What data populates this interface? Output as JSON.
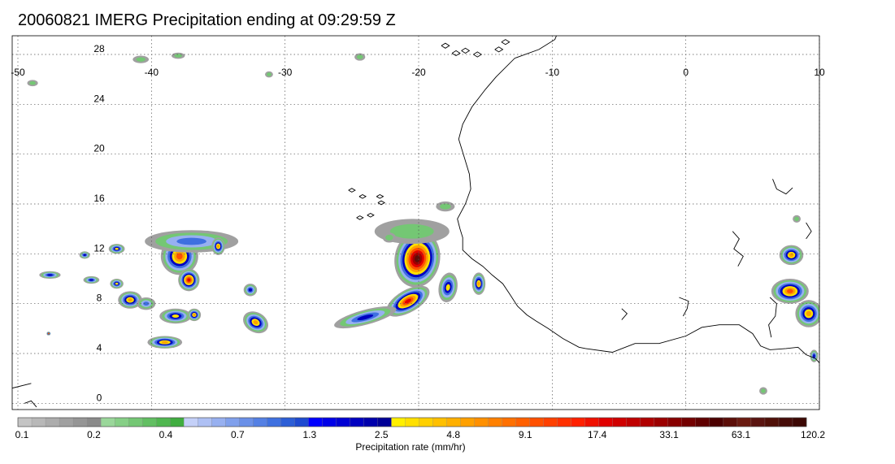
{
  "title": "20060821 IMERG Precipitation ending at 09:29:59 Z",
  "map": {
    "lon_labels": [
      "-50",
      "-40",
      "-30",
      "-20",
      "-10",
      "0",
      "10"
    ],
    "lat_labels": [
      "0",
      "4",
      "8",
      "12",
      "16",
      "20",
      "24",
      "28"
    ],
    "lon_range": [
      -50,
      10
    ],
    "lat_range": [
      -0.5,
      29.5
    ],
    "grid": "dotted",
    "coastline_color": "#000000"
  },
  "colorbar": {
    "colors": [
      "#c4c4c4",
      "#b8b8b8",
      "#acacac",
      "#a0a0a0",
      "#959595",
      "#8a8a8a",
      "#9ad79a",
      "#86cf86",
      "#74c774",
      "#62bf62",
      "#50b750",
      "#40ad40",
      "#c4d0f8",
      "#aec0f4",
      "#97b0f0",
      "#80a0ec",
      "#6a90e8",
      "#5480e4",
      "#3e70e0",
      "#2c5ed6",
      "#1e4ad0",
      "#0000ff",
      "#0000e8",
      "#0000d4",
      "#0000c0",
      "#0000ac",
      "#000096",
      "#fff000",
      "#ffe000",
      "#ffd000",
      "#ffc000",
      "#ffb000",
      "#ffa000",
      "#ff9000",
      "#ff8000",
      "#ff7000",
      "#ff6000",
      "#ff5000",
      "#ff4000",
      "#ff3000",
      "#ff2000",
      "#f01000",
      "#e00000",
      "#d00000",
      "#c00000",
      "#b00000",
      "#9c0000",
      "#880000",
      "#740000",
      "#600000",
      "#4c0000",
      "#5c0e08",
      "#6a1a10",
      "#5a1410",
      "#501008",
      "#460c08",
      "#3c0804"
    ],
    "tick_labels": [
      "0.1",
      "0.2",
      "0.4",
      "0.7",
      "1.3",
      "2.5",
      "4.8",
      "9.1",
      "17.4",
      "33.1",
      "63.1",
      "120.2"
    ],
    "label": "Precipitation rate (mm/hr)"
  },
  "precip_features": [
    {
      "lon": -20.1,
      "lat": 11.6,
      "rlon": 1.7,
      "rlat": 2.3,
      "rate": 60,
      "rot": 10
    },
    {
      "lon": -20.8,
      "lat": 8.2,
      "rlon": 1.8,
      "rlat": 0.9,
      "rate": 20,
      "rot": -30
    },
    {
      "lon": -24.0,
      "lat": 6.9,
      "rlon": 2.4,
      "rlat": 0.6,
      "rate": 3,
      "rot": -15
    },
    {
      "lon": -17.8,
      "lat": 9.3,
      "rlon": 0.7,
      "rlat": 1.2,
      "rate": 4,
      "rot": 10
    },
    {
      "lon": -15.5,
      "lat": 9.6,
      "rlon": 0.5,
      "rlat": 0.9,
      "rate": 6,
      "rot": 0
    },
    {
      "lon": -20.5,
      "lat": 13.8,
      "rlon": 2.8,
      "rlat": 1.0,
      "rate": 0.3,
      "rot": 0
    },
    {
      "lon": -37.9,
      "lat": 11.8,
      "rlon": 1.4,
      "rlat": 1.5,
      "rate": 14,
      "rot": 20
    },
    {
      "lon": -37.2,
      "lat": 9.9,
      "rlon": 0.8,
      "rlat": 0.9,
      "rate": 25,
      "rot": 0
    },
    {
      "lon": -37.0,
      "lat": 13.0,
      "rlon": 3.5,
      "rlat": 0.9,
      "rate": 1.5,
      "rot": 0
    },
    {
      "lon": -35.0,
      "lat": 12.6,
      "rlon": 0.5,
      "rlat": 0.7,
      "rate": 6,
      "rot": 0
    },
    {
      "lon": -41.6,
      "lat": 8.3,
      "rlon": 0.9,
      "rlat": 0.7,
      "rate": 8,
      "rot": 0
    },
    {
      "lon": -38.2,
      "lat": 7.0,
      "rlon": 1.2,
      "rlat": 0.6,
      "rate": 4,
      "rot": 0
    },
    {
      "lon": -36.8,
      "lat": 7.1,
      "rlon": 0.5,
      "rlat": 0.5,
      "rate": 9,
      "rot": 0
    },
    {
      "lon": -39.0,
      "lat": 4.9,
      "rlon": 1.3,
      "rlat": 0.5,
      "rate": 6,
      "rot": 0
    },
    {
      "lon": -32.2,
      "lat": 6.5,
      "rlon": 1.0,
      "rlat": 0.8,
      "rate": 7,
      "rot": 30
    },
    {
      "lon": -32.6,
      "lat": 9.1,
      "rlon": 0.5,
      "rlat": 0.5,
      "rate": 3,
      "rot": 0
    },
    {
      "lon": -42.6,
      "lat": 9.6,
      "rlon": 0.5,
      "rlat": 0.4,
      "rate": 5,
      "rot": 0
    },
    {
      "lon": -44.5,
      "lat": 9.9,
      "rlon": 0.6,
      "rlat": 0.3,
      "rate": 3,
      "rot": 0
    },
    {
      "lon": -47.6,
      "lat": 10.3,
      "rlon": 0.8,
      "rlat": 0.3,
      "rate": 3,
      "rot": 0
    },
    {
      "lon": -42.6,
      "lat": 12.4,
      "rlon": 0.6,
      "rlat": 0.4,
      "rate": 4,
      "rot": 0
    },
    {
      "lon": -45.0,
      "lat": 11.9,
      "rlon": 0.4,
      "rlat": 0.3,
      "rate": 2,
      "rot": 0
    },
    {
      "lon": -40.4,
      "lat": 8.0,
      "rlon": 0.7,
      "rlat": 0.5,
      "rate": 1,
      "rot": 0
    },
    {
      "lon": -47.7,
      "lat": 5.6,
      "rlon": 0.15,
      "rlat": 0.15,
      "rate": 20,
      "rot": 0
    },
    {
      "lon": 7.9,
      "lat": 11.9,
      "rlon": 0.9,
      "rlat": 0.8,
      "rate": 6,
      "rot": 0
    },
    {
      "lon": 7.8,
      "lat": 9.0,
      "rlon": 1.4,
      "rlat": 1.0,
      "rate": 14,
      "rot": 0
    },
    {
      "lon": 9.2,
      "lat": 7.2,
      "rlon": 1.0,
      "rlat": 1.1,
      "rate": 8,
      "rot": 0
    },
    {
      "lon": 9.6,
      "lat": 3.8,
      "rlon": 0.3,
      "rlat": 0.5,
      "rate": 3,
      "rot": 0
    },
    {
      "lon": -40.8,
      "lat": 27.6,
      "rlon": 0.6,
      "rlat": 0.3,
      "rate": 0.5,
      "rot": 0
    },
    {
      "lon": -38.0,
      "lat": 27.9,
      "rlon": 0.5,
      "rlat": 0.25,
      "rate": 0.3,
      "rot": 0
    },
    {
      "lon": -31.2,
      "lat": 26.4,
      "rlon": 0.3,
      "rlat": 0.25,
      "rate": 0.3,
      "rot": 0
    },
    {
      "lon": -48.9,
      "lat": 25.7,
      "rlon": 0.4,
      "rlat": 0.25,
      "rate": 0.3,
      "rot": 0
    },
    {
      "lon": -24.4,
      "lat": 27.8,
      "rlon": 0.4,
      "rlat": 0.3,
      "rate": 0.3,
      "rot": 0
    },
    {
      "lon": -18.0,
      "lat": 15.8,
      "rlon": 0.7,
      "rlat": 0.4,
      "rate": 0.4,
      "rot": 0
    },
    {
      "lon": -22.2,
      "lat": 13.3,
      "rlon": 0.5,
      "rlat": 0.4,
      "rate": 0.3,
      "rot": 0
    },
    {
      "lon": 5.8,
      "lat": 1.0,
      "rlon": 0.3,
      "rlat": 0.3,
      "rate": 0.3,
      "rot": 0
    },
    {
      "lon": 8.3,
      "lat": 14.8,
      "rlon": 0.3,
      "rlat": 0.3,
      "rate": 0.3,
      "rot": 0
    }
  ]
}
